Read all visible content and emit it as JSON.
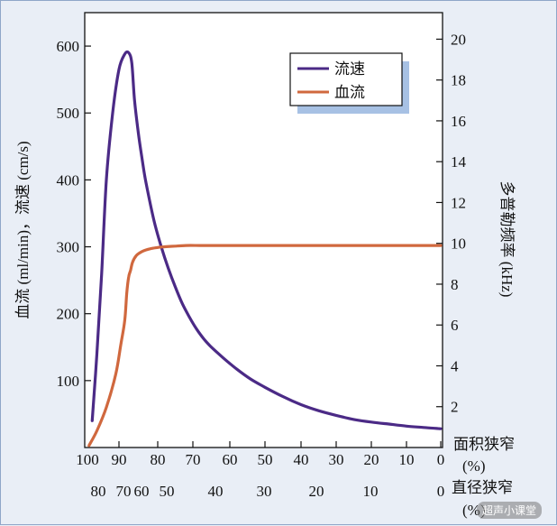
{
  "chart_data": {
    "type": "line",
    "left_axis": {
      "label": "血流 (ml/min)，流速 (cm/s)",
      "ticks": [
        100,
        200,
        300,
        400,
        500,
        600
      ],
      "range": [
        0,
        650
      ]
    },
    "right_axis": {
      "label": "多普勒频率 (kHz)",
      "ticks": [
        2,
        4,
        6,
        8,
        10,
        12,
        14,
        16,
        18,
        20
      ],
      "range": [
        0,
        21.3
      ]
    },
    "x_axis_area": {
      "label": [
        "面积狭窄",
        "(%)"
      ],
      "ticks": [
        "100",
        "90",
        "80",
        "70",
        "60",
        "50",
        "40",
        "30",
        "20",
        "10",
        "0"
      ],
      "tick_values": [
        100,
        90,
        80,
        70,
        60,
        50,
        40,
        30,
        20,
        10,
        0
      ]
    },
    "x_axis_diameter": {
      "label": [
        "直径狭窄",
        "(%)"
      ],
      "ticks": [
        "80",
        "70",
        "60",
        "50",
        "40",
        "30",
        "20",
        "10",
        "0"
      ],
      "tick_values": [
        80,
        70,
        60,
        50,
        40,
        30,
        20,
        10,
        0
      ]
    },
    "series": [
      {
        "name": "流速",
        "color": "#4b2a86",
        "x_area": [
          98.5,
          97,
          95.5,
          94,
          92,
          90,
          88.5,
          87.5,
          86.7,
          86,
          85,
          84,
          83,
          81,
          79,
          77,
          75,
          73,
          71,
          69,
          67,
          65,
          62,
          58,
          54,
          50,
          45,
          40,
          35,
          30,
          25,
          20,
          15,
          10,
          5,
          0
        ],
        "values": [
          40,
          140,
          260,
          400,
          500,
          565,
          588,
          590,
          575,
          520,
          470,
          430,
          395,
          340,
          300,
          268,
          240,
          215,
          195,
          177,
          162,
          150,
          135,
          117,
          102,
          90,
          76,
          64,
          55,
          48,
          42,
          38,
          35,
          32,
          30,
          28
        ]
      },
      {
        "name": "血流",
        "color": "#d0683e",
        "x_area": [
          99.5,
          97,
          94,
          91,
          89.5,
          88.5,
          88,
          87.5,
          87,
          86.5,
          85.5,
          84,
          82,
          80,
          78,
          75,
          72,
          68,
          64,
          60,
          55,
          50,
          40,
          30,
          20,
          10,
          0
        ],
        "values": [
          3,
          25,
          60,
          110,
          155,
          190,
          230,
          255,
          265,
          277,
          287,
          293,
          297,
          299,
          300,
          301,
          302,
          302,
          302,
          302,
          302,
          302,
          302,
          302,
          302,
          302,
          302
        ]
      }
    ],
    "legend": {
      "position": "top-right",
      "items": [
        "流速",
        "血流"
      ]
    }
  },
  "watermark": "超声小课堂"
}
